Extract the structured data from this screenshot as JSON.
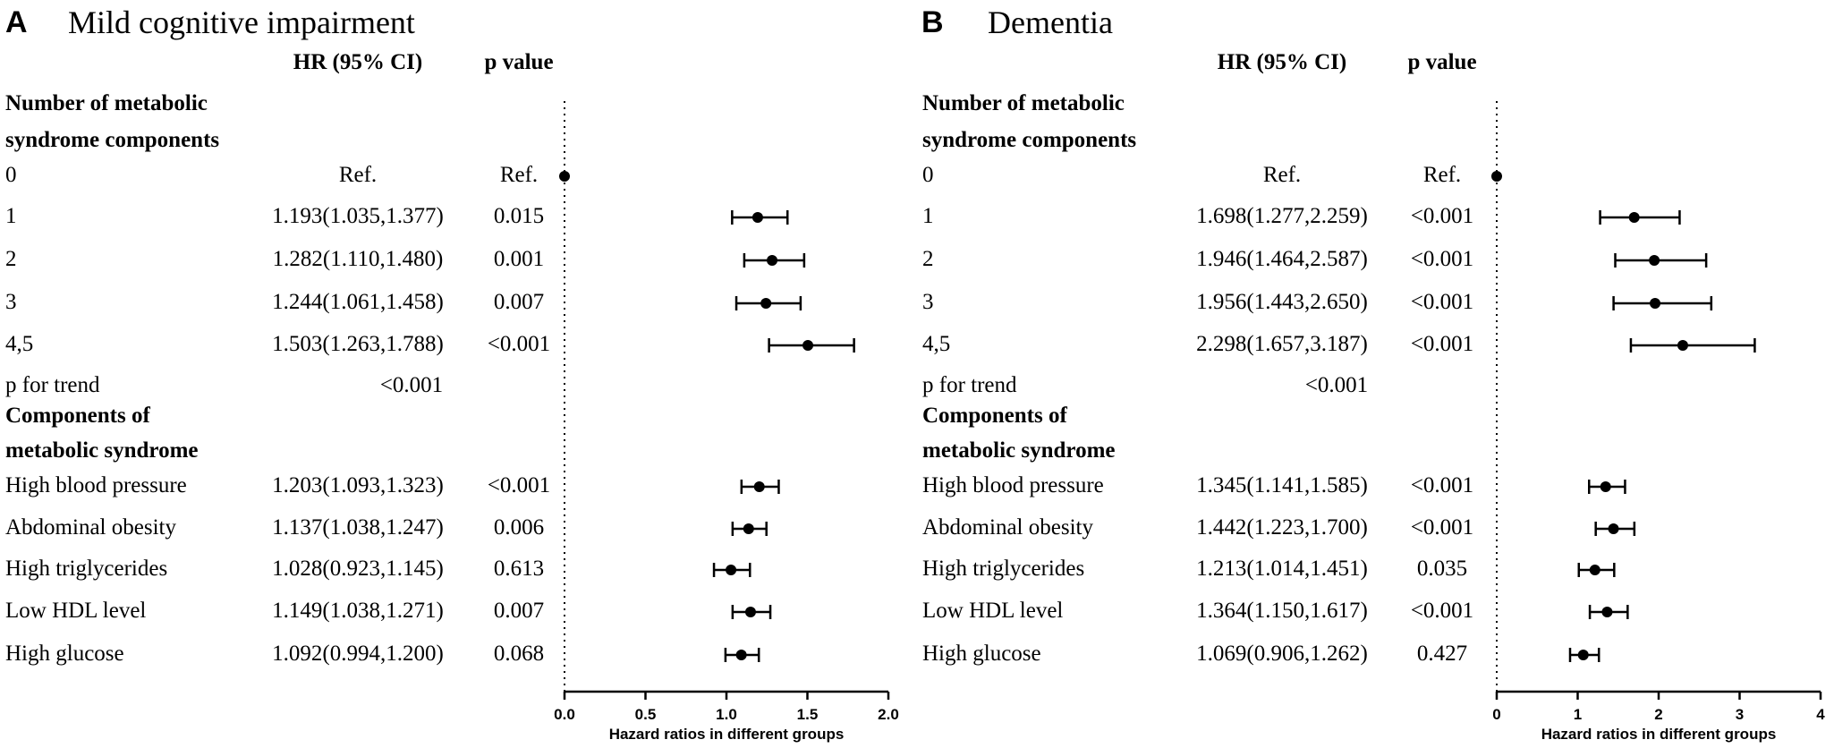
{
  "chart_data": [
    {
      "type": "forest",
      "panel": "A",
      "title": "Mild cognitive impairment",
      "columns": {
        "hr": "HR (95% CI)",
        "p": "p value"
      },
      "xlabel": "Hazard ratios in different groups",
      "xlim": [
        0,
        2.0
      ],
      "xticks": [
        "0.0",
        "0.5",
        "1.0",
        "1.5",
        "2.0"
      ],
      "reference_line": 0,
      "rows": [
        {
          "label": "Number of metabolic",
          "section": true
        },
        {
          "label": "syndrome components",
          "section": true
        },
        {
          "label": "0",
          "hr_text": "Ref.",
          "p": "Ref.",
          "hr": 0,
          "ref": true
        },
        {
          "label": "1",
          "hr_text": "1.193(1.035,1.377)",
          "p": "0.015",
          "hr": 1.193,
          "lo": 1.035,
          "hi": 1.377
        },
        {
          "label": "2",
          "hr_text": "1.282(1.110,1.480)",
          "p": "0.001",
          "hr": 1.282,
          "lo": 1.11,
          "hi": 1.48
        },
        {
          "label": "3",
          "hr_text": "1.244(1.061,1.458)",
          "p": "0.007",
          "hr": 1.244,
          "lo": 1.061,
          "hi": 1.458
        },
        {
          "label": "4,5",
          "hr_text": "1.503(1.263,1.788)",
          "p": "<0.001",
          "hr": 1.503,
          "lo": 1.263,
          "hi": 1.788
        },
        {
          "label": "p for trend",
          "hr_text": "<0.001",
          "trend": true
        },
        {
          "label": "Components of",
          "section": true
        },
        {
          "label": "metabolic syndrome",
          "section": true
        },
        {
          "label": "High blood pressure",
          "hr_text": "1.203(1.093,1.323)",
          "p": "<0.001",
          "hr": 1.203,
          "lo": 1.093,
          "hi": 1.323
        },
        {
          "label": "Abdominal obesity",
          "hr_text": "1.137(1.038,1.247)",
          "p": "0.006",
          "hr": 1.137,
          "lo": 1.038,
          "hi": 1.247
        },
        {
          "label": "High triglycerides",
          "hr_text": "1.028(0.923,1.145)",
          "p": "0.613",
          "hr": 1.028,
          "lo": 0.923,
          "hi": 1.145
        },
        {
          "label": "Low HDL level",
          "hr_text": "1.149(1.038,1.271)",
          "p": "0.007",
          "hr": 1.149,
          "lo": 1.038,
          "hi": 1.271
        },
        {
          "label": "High glucose",
          "hr_text": "1.092(0.994,1.200)",
          "p": "0.068",
          "hr": 1.092,
          "lo": 0.994,
          "hi": 1.2
        }
      ]
    },
    {
      "type": "forest",
      "panel": "B",
      "title": "Dementia",
      "columns": {
        "hr": "HR (95% CI)",
        "p": "p value"
      },
      "xlabel": "Hazard ratios in different groups",
      "xlim": [
        0,
        4
      ],
      "xticks": [
        "0",
        "1",
        "2",
        "3",
        "4"
      ],
      "reference_line": 0,
      "rows": [
        {
          "label": "Number of metabolic",
          "section": true
        },
        {
          "label": "syndrome components",
          "section": true
        },
        {
          "label": "0",
          "hr_text": "Ref.",
          "p": "Ref.",
          "hr": 0,
          "ref": true
        },
        {
          "label": "1",
          "hr_text": "1.698(1.277,2.259)",
          "p": "<0.001",
          "hr": 1.698,
          "lo": 1.277,
          "hi": 2.259
        },
        {
          "label": "2",
          "hr_text": "1.946(1.464,2.587)",
          "p": "<0.001",
          "hr": 1.946,
          "lo": 1.464,
          "hi": 2.587
        },
        {
          "label": "3",
          "hr_text": "1.956(1.443,2.650)",
          "p": "<0.001",
          "hr": 1.956,
          "lo": 1.443,
          "hi": 2.65
        },
        {
          "label": "4,5",
          "hr_text": "2.298(1.657,3.187)",
          "p": "<0.001",
          "hr": 2.298,
          "lo": 1.657,
          "hi": 3.187
        },
        {
          "label": "p for trend",
          "hr_text": "<0.001",
          "trend": true
        },
        {
          "label": "Components of",
          "section": true
        },
        {
          "label": "metabolic syndrome",
          "section": true
        },
        {
          "label": "High blood pressure",
          "hr_text": "1.345(1.141,1.585)",
          "p": "<0.001",
          "hr": 1.345,
          "lo": 1.141,
          "hi": 1.585
        },
        {
          "label": "Abdominal obesity",
          "hr_text": "1.442(1.223,1.700)",
          "p": "<0.001",
          "hr": 1.442,
          "lo": 1.223,
          "hi": 1.7
        },
        {
          "label": "High triglycerides",
          "hr_text": "1.213(1.014,1.451)",
          "p": "0.035",
          "hr": 1.213,
          "lo": 1.014,
          "hi": 1.451
        },
        {
          "label": "Low HDL level",
          "hr_text": "1.364(1.150,1.617)",
          "p": "<0.001",
          "hr": 1.364,
          "lo": 1.15,
          "hi": 1.617
        },
        {
          "label": "High glucose",
          "hr_text": "1.069(0.906,1.262)",
          "p": "0.427",
          "hr": 1.069,
          "lo": 0.906,
          "hi": 1.262
        }
      ]
    }
  ]
}
